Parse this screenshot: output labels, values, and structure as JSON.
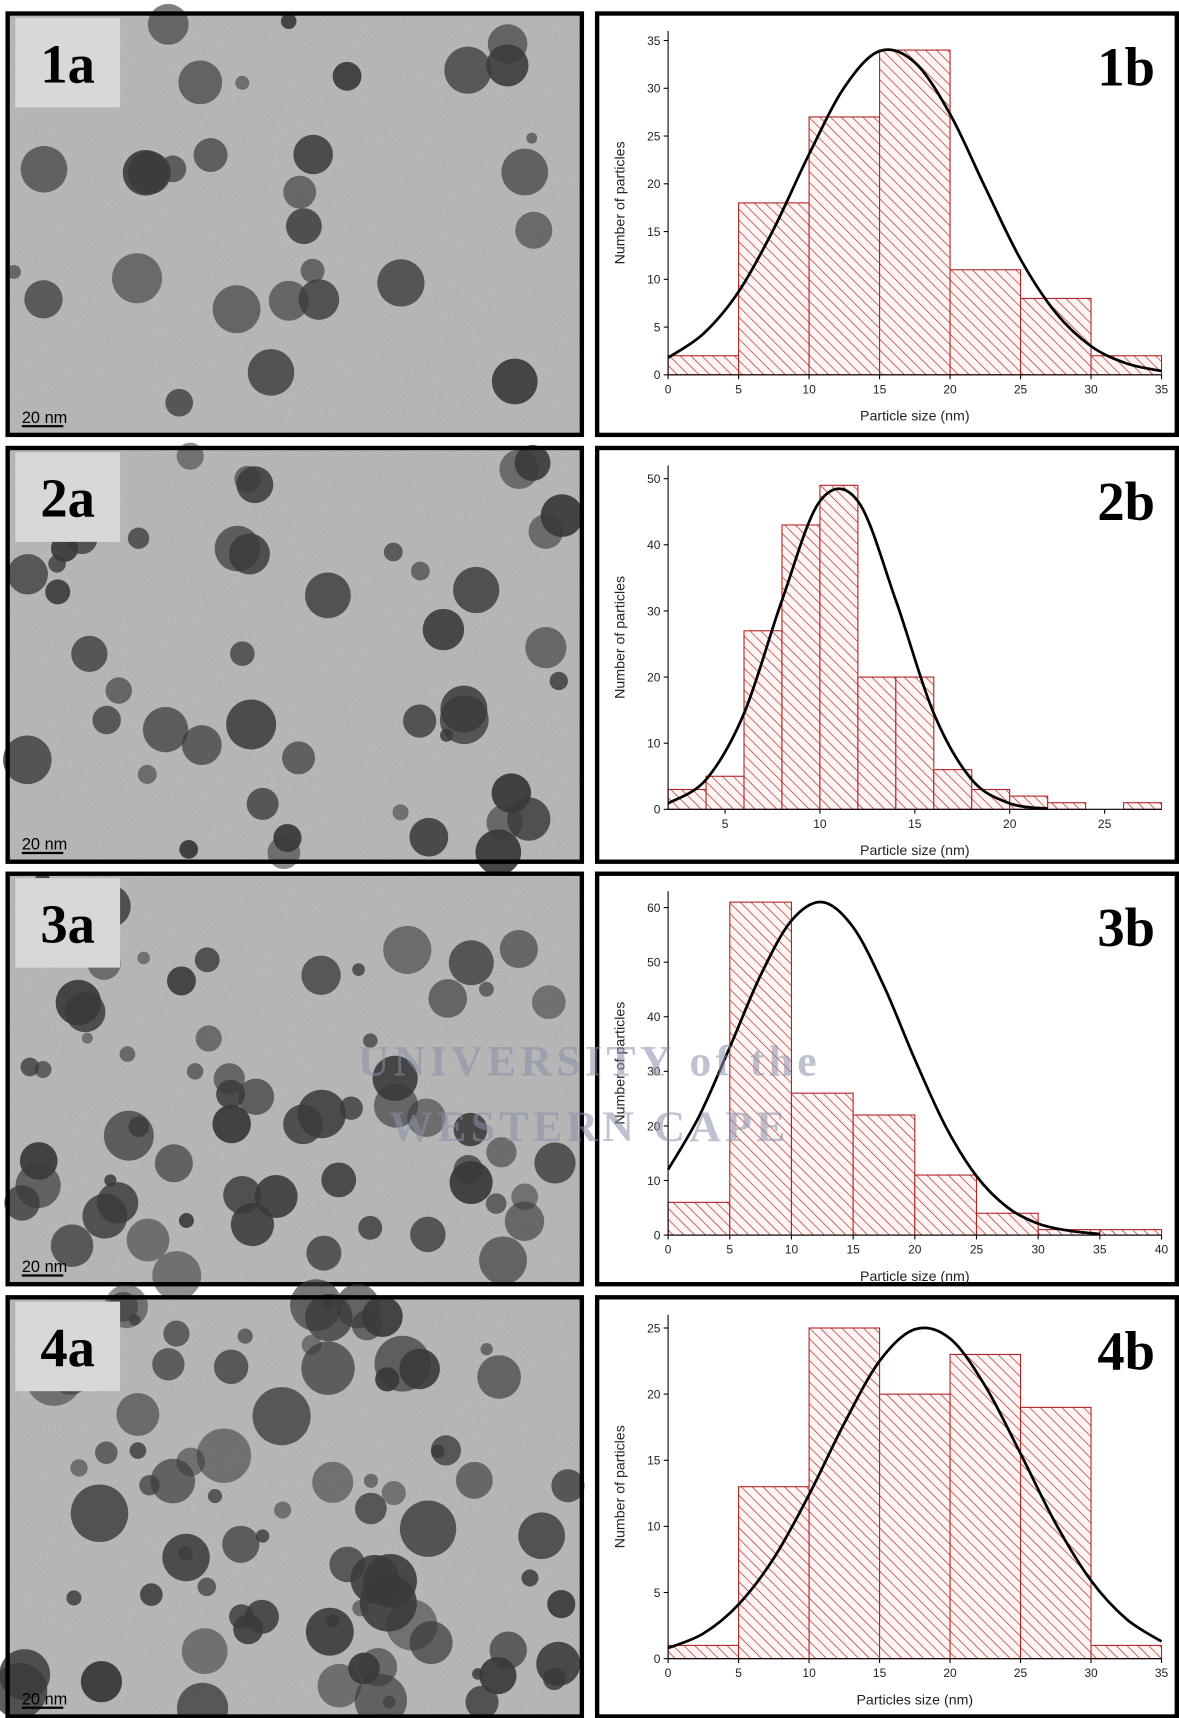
{
  "panels": [
    {
      "label": "1a",
      "scale_bar": "20 nm"
    },
    {
      "label": "2a",
      "scale_bar": "20 nm"
    },
    {
      "label": "3a",
      "scale_bar": "20 nm"
    },
    {
      "label": "4a",
      "scale_bar": "20 nm"
    }
  ],
  "watermark": [
    "UNIVERSITY of the",
    "WESTERN CAPE"
  ],
  "chart_data": [
    {
      "type": "histogram",
      "label": "1b",
      "x_label": "Particle size (nm)",
      "y_label": "Number of particles",
      "color": "#b22222",
      "bins": [
        0,
        5,
        10,
        15,
        20,
        25,
        30,
        35
      ],
      "values": [
        2,
        18,
        27,
        34,
        11,
        8,
        2
      ],
      "xlim": [
        0,
        35
      ],
      "ylim": [
        0,
        36
      ],
      "xticks": [
        0,
        5,
        10,
        15,
        20,
        25,
        30,
        35
      ],
      "yticks": [
        0,
        5,
        10,
        15,
        20,
        25,
        30,
        35
      ],
      "fit": {
        "color": "#000000",
        "x": [
          0,
          2.5,
          5,
          7.5,
          10,
          12.5,
          15,
          17.5,
          20,
          22.5,
          25,
          27.5,
          30,
          32.5,
          35
        ],
        "y": [
          1.8,
          4.3,
          8.7,
          15.3,
          23.1,
          30.1,
          33.9,
          32.7,
          27.3,
          19.6,
          12.1,
          6.5,
          3.0,
          1.2,
          0.4
        ]
      }
    },
    {
      "type": "histogram",
      "label": "2b",
      "x_label": "Particle size (nm)",
      "y_label": "Number of particles",
      "color": "#b22222",
      "bins": [
        2,
        4,
        6,
        8,
        10,
        12,
        14,
        16,
        18,
        20,
        22,
        24,
        26,
        28
      ],
      "values": [
        3,
        5,
        27,
        43,
        49,
        20,
        20,
        6,
        3,
        2,
        1,
        0,
        1
      ],
      "xlim": [
        2,
        28
      ],
      "ylim": [
        0,
        52
      ],
      "xticks": [
        5,
        10,
        15,
        20,
        25
      ],
      "yticks": [
        0,
        10,
        20,
        30,
        40,
        50
      ],
      "fit": {
        "color": "#000000",
        "x": [
          2,
          4,
          6,
          8,
          10,
          12,
          14,
          16,
          18,
          20,
          22
        ],
        "y": [
          0.9,
          4.5,
          14.5,
          31.6,
          46.6,
          46.6,
          31.6,
          14.5,
          4.5,
          0.9,
          0.1
        ]
      }
    },
    {
      "type": "histogram",
      "label": "3b",
      "x_label": "Particle size (nm)",
      "y_label": "Number of particles",
      "color": "#b22222",
      "bins": [
        0,
        5,
        10,
        15,
        20,
        25,
        30,
        35,
        40
      ],
      "values": [
        6,
        61,
        26,
        22,
        11,
        4,
        1,
        1
      ],
      "xlim": [
        0,
        40
      ],
      "ylim": [
        0,
        63
      ],
      "xticks": [
        0,
        5,
        10,
        15,
        20,
        25,
        30,
        35,
        40
      ],
      "yticks": [
        0,
        10,
        20,
        30,
        40,
        50,
        60
      ],
      "fit": {
        "color": "#000000",
        "x": [
          0,
          2.5,
          5,
          7.5,
          10,
          12.5,
          15,
          17.5,
          20,
          22.5,
          25,
          27.5,
          30,
          32.5,
          35
        ],
        "y": [
          12.0,
          21.7,
          34.4,
          47.6,
          57.6,
          61.0,
          56.4,
          45.6,
          32.2,
          19.9,
          10.8,
          5.1,
          2.1,
          0.8,
          0.2
        ]
      }
    },
    {
      "type": "histogram",
      "label": "4b",
      "x_label": "Particles size (nm)",
      "y_label": "Number of particles",
      "color": "#b22222",
      "bins": [
        0,
        5,
        10,
        15,
        20,
        25,
        30,
        35
      ],
      "values": [
        1,
        13,
        25,
        20,
        23,
        19,
        1
      ],
      "xlim": [
        0,
        35
      ],
      "ylim": [
        0,
        26
      ],
      "xticks": [
        0,
        5,
        10,
        15,
        20,
        25,
        30,
        35
      ],
      "yticks": [
        0,
        5,
        10,
        15,
        20,
        25
      ],
      "fit": {
        "color": "#000000",
        "x": [
          0,
          2.5,
          5,
          7.5,
          10,
          12.5,
          15,
          17.5,
          20,
          22.5,
          25,
          27.5,
          30,
          32.5,
          35
        ],
        "y": [
          0.8,
          1.9,
          4.1,
          7.6,
          12.4,
          17.8,
          22.5,
          24.9,
          24.2,
          20.6,
          15.5,
          10.2,
          5.9,
          3.0,
          1.3
        ]
      }
    }
  ]
}
